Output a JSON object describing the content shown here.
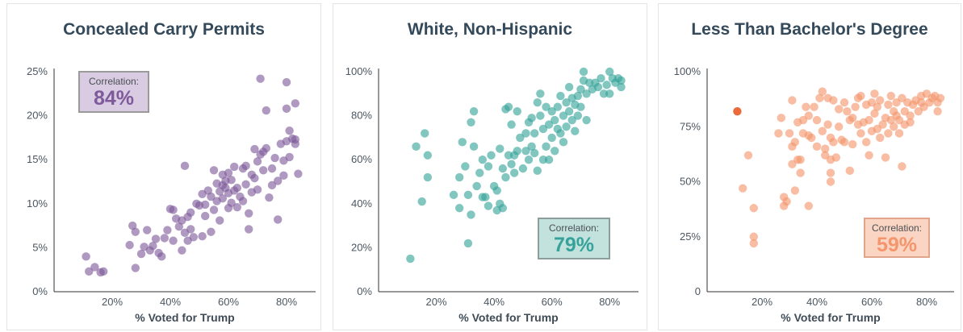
{
  "chart_data": [
    {
      "type": "scatter",
      "title": "Concealed Carry Permits",
      "xlabel": "% Voted for Trump",
      "ylabel": "",
      "xlim": [
        0,
        90
      ],
      "ylim": [
        0,
        25
      ],
      "x_ticks": [
        "20%",
        "40%",
        "60%",
        "80%"
      ],
      "x_tick_values": [
        20,
        40,
        60,
        80
      ],
      "y_ticks": [
        "0%",
        "5%",
        "10%",
        "15%",
        "20%",
        "25%"
      ],
      "y_tick_values": [
        0,
        5,
        10,
        15,
        20,
        25
      ],
      "color": "#7e5a9b",
      "correlation_label": "Correlation:",
      "correlation_value": "84%",
      "correlation_box_color": "#d9cbe2",
      "points": [
        [
          11,
          4
        ],
        [
          12,
          2.3
        ],
        [
          14,
          2.8
        ],
        [
          16,
          2.2
        ],
        [
          17,
          2.3
        ],
        [
          26,
          5.3
        ],
        [
          27,
          7.5
        ],
        [
          28,
          6.8
        ],
        [
          28,
          2.7
        ],
        [
          30,
          4.3
        ],
        [
          31,
          5.1
        ],
        [
          32,
          7
        ],
        [
          33,
          4.7
        ],
        [
          34,
          5.2
        ],
        [
          35,
          6
        ],
        [
          36,
          4.4
        ],
        [
          37,
          4
        ],
        [
          38,
          6.1
        ],
        [
          39,
          7
        ],
        [
          40,
          9.4
        ],
        [
          41,
          9.3
        ],
        [
          41,
          5.8
        ],
        [
          42,
          8.3
        ],
        [
          43,
          7.4
        ],
        [
          44,
          8.1
        ],
        [
          44,
          4.7
        ],
        [
          45,
          6.7
        ],
        [
          45,
          14.3
        ],
        [
          46,
          8.5
        ],
        [
          46,
          5.8
        ],
        [
          47,
          7.1
        ],
        [
          47,
          9
        ],
        [
          48,
          6.2
        ],
        [
          49,
          10
        ],
        [
          50,
          9.8
        ],
        [
          51,
          11.1
        ],
        [
          51,
          6.3
        ],
        [
          52,
          9.9
        ],
        [
          52,
          8.6
        ],
        [
          53,
          11.5
        ],
        [
          54,
          6.8
        ],
        [
          54,
          10.8
        ],
        [
          55,
          13.8
        ],
        [
          55,
          9.3
        ],
        [
          56,
          12.3
        ],
        [
          56,
          10.3
        ],
        [
          57,
          11.4
        ],
        [
          57,
          8.1
        ],
        [
          58,
          12.1
        ],
        [
          58,
          10.6
        ],
        [
          58,
          13.3
        ],
        [
          59,
          11.8
        ],
        [
          59,
          12.6
        ],
        [
          60,
          11.2
        ],
        [
          60,
          9.5
        ],
        [
          60,
          13.5
        ],
        [
          61,
          12.7
        ],
        [
          61,
          10.1
        ],
        [
          62,
          11.5
        ],
        [
          62,
          14.2
        ],
        [
          63,
          9.6
        ],
        [
          63,
          11.8
        ],
        [
          64,
          10.8
        ],
        [
          65,
          10.3
        ],
        [
          65,
          14
        ],
        [
          66,
          14.3
        ],
        [
          66,
          12.2
        ],
        [
          67,
          8.9
        ],
        [
          67,
          7.1
        ],
        [
          68,
          11.3
        ],
        [
          68,
          13.3
        ],
        [
          69,
          16.2
        ],
        [
          69,
          12.9
        ],
        [
          70,
          11.6
        ],
        [
          70,
          14.8
        ],
        [
          71,
          15.6
        ],
        [
          71,
          24.2
        ],
        [
          72,
          15.9
        ],
        [
          72,
          13.8
        ],
        [
          73,
          16.3
        ],
        [
          73,
          20.6
        ],
        [
          74,
          10.7
        ],
        [
          75,
          14
        ],
        [
          75,
          12.1
        ],
        [
          76,
          15.2
        ],
        [
          77,
          8.2
        ],
        [
          77,
          12.6
        ],
        [
          78,
          16.8
        ],
        [
          79,
          13.2
        ],
        [
          79,
          14.9
        ],
        [
          80,
          17.1
        ],
        [
          80,
          23.8
        ],
        [
          80,
          20.8
        ],
        [
          81,
          18.3
        ],
        [
          81,
          15.3
        ],
        [
          82,
          17.4
        ],
        [
          83,
          17.3
        ],
        [
          83,
          16.8
        ],
        [
          83,
          21.4
        ],
        [
          84,
          13.4
        ]
      ]
    },
    {
      "type": "scatter",
      "title": "White, Non-Hispanic",
      "xlabel": "% Voted for Trump",
      "ylabel": "",
      "xlim": [
        0,
        90
      ],
      "ylim": [
        0,
        100
      ],
      "x_ticks": [
        "20%",
        "40%",
        "60%",
        "80%"
      ],
      "x_tick_values": [
        20,
        40,
        60,
        80
      ],
      "y_ticks": [
        "0%",
        "20%",
        "40%",
        "60%",
        "80%",
        "100%"
      ],
      "y_tick_values": [
        0,
        20,
        40,
        60,
        80,
        100
      ],
      "color": "#36a39a",
      "correlation_label": "Correlation:",
      "correlation_value": "79%",
      "correlation_box_color": "#c3e2de",
      "points": [
        [
          11,
          15
        ],
        [
          13,
          66
        ],
        [
          15,
          41
        ],
        [
          16,
          72
        ],
        [
          17,
          52
        ],
        [
          17,
          62
        ],
        [
          26,
          44
        ],
        [
          28,
          38
        ],
        [
          28,
          52
        ],
        [
          29,
          68
        ],
        [
          30,
          57
        ],
        [
          31,
          22
        ],
        [
          31,
          44
        ],
        [
          32,
          77
        ],
        [
          32,
          35
        ],
        [
          33,
          82
        ],
        [
          33,
          66
        ],
        [
          34,
          48
        ],
        [
          35,
          54
        ],
        [
          36,
          43
        ],
        [
          36,
          60
        ],
        [
          37,
          43
        ],
        [
          38,
          39
        ],
        [
          38,
          57
        ],
        [
          39,
          62
        ],
        [
          40,
          48
        ],
        [
          41,
          46
        ],
        [
          41,
          37
        ],
        [
          42,
          40
        ],
        [
          42,
          65
        ],
        [
          43,
          38
        ],
        [
          43,
          56
        ],
        [
          44,
          83
        ],
        [
          44,
          52
        ],
        [
          45,
          84
        ],
        [
          45,
          62
        ],
        [
          46,
          58
        ],
        [
          46,
          76
        ],
        [
          47,
          54
        ],
        [
          47,
          62
        ],
        [
          48,
          64
        ],
        [
          48,
          82
        ],
        [
          49,
          70
        ],
        [
          50,
          56
        ],
        [
          51,
          72
        ],
        [
          51,
          64
        ],
        [
          52,
          77
        ],
        [
          52,
          60
        ],
        [
          53,
          66
        ],
        [
          53,
          79
        ],
        [
          54,
          72
        ],
        [
          54,
          63
        ],
        [
          55,
          86
        ],
        [
          55,
          55
        ],
        [
          56,
          80
        ],
        [
          56,
          90
        ],
        [
          57,
          74
        ],
        [
          57,
          60
        ],
        [
          58,
          84
        ],
        [
          58,
          66
        ],
        [
          59,
          76
        ],
        [
          59,
          60
        ],
        [
          60,
          82
        ],
        [
          60,
          70
        ],
        [
          61,
          78
        ],
        [
          61,
          64
        ],
        [
          62,
          84
        ],
        [
          62,
          74
        ],
        [
          63,
          89
        ],
        [
          63,
          72
        ],
        [
          64,
          80
        ],
        [
          64,
          68
        ],
        [
          65,
          86
        ],
        [
          65,
          75
        ],
        [
          66,
          93
        ],
        [
          66,
          82
        ],
        [
          67,
          88
        ],
        [
          67,
          78
        ],
        [
          68,
          85
        ],
        [
          68,
          73
        ],
        [
          69,
          89
        ],
        [
          69,
          80
        ],
        [
          70,
          92
        ],
        [
          70,
          84
        ],
        [
          71,
          100
        ],
        [
          71,
          96
        ],
        [
          72,
          90
        ],
        [
          72,
          78
        ],
        [
          73,
          95
        ],
        [
          74,
          92
        ],
        [
          75,
          95
        ],
        [
          76,
          93
        ],
        [
          77,
          97
        ],
        [
          78,
          90
        ],
        [
          79,
          94
        ],
        [
          80,
          100
        ],
        [
          80,
          90
        ],
        [
          81,
          97
        ],
        [
          82,
          95
        ],
        [
          83,
          97
        ],
        [
          84,
          96
        ],
        [
          84,
          93
        ]
      ]
    },
    {
      "type": "scatter",
      "title": "Less Than Bachelor's Degree",
      "xlabel": "% Voted for Trump",
      "ylabel": "",
      "xlim": [
        0,
        90
      ],
      "ylim": [
        0,
        100
      ],
      "x_ticks": [
        "20%",
        "40%",
        "60%",
        "80%"
      ],
      "x_tick_values": [
        20,
        40,
        60,
        80
      ],
      "y_ticks": [
        "0",
        "25%",
        "50%",
        "75%",
        "100%"
      ],
      "y_tick_values": [
        0,
        25,
        50,
        75,
        100
      ],
      "color": "#f4956b",
      "highlight_point": [
        11,
        82
      ],
      "highlight_color": "#ea6a3c",
      "correlation_label": "Correlation:",
      "correlation_value": "59%",
      "correlation_box_color": "#fbd5c3",
      "points": [
        [
          11,
          82
        ],
        [
          13,
          47
        ],
        [
          15,
          62
        ],
        [
          17,
          38
        ],
        [
          17,
          22
        ],
        [
          17,
          25
        ],
        [
          26,
          72
        ],
        [
          27,
          79
        ],
        [
          28,
          43
        ],
        [
          28,
          39
        ],
        [
          29,
          41
        ],
        [
          30,
          72
        ],
        [
          31,
          66
        ],
        [
          31,
          87
        ],
        [
          31,
          58
        ],
        [
          32,
          68
        ],
        [
          32,
          46
        ],
        [
          33,
          77
        ],
        [
          33,
          60
        ],
        [
          34,
          54
        ],
        [
          34,
          60
        ],
        [
          35,
          72
        ],
        [
          35,
          78
        ],
        [
          36,
          84
        ],
        [
          37,
          80
        ],
        [
          37,
          71
        ],
        [
          37,
          39
        ],
        [
          38,
          70
        ],
        [
          39,
          84
        ],
        [
          40,
          66
        ],
        [
          40,
          78
        ],
        [
          41,
          88
        ],
        [
          42,
          73
        ],
        [
          42,
          91
        ],
        [
          43,
          65
        ],
        [
          43,
          62
        ],
        [
          44,
          88
        ],
        [
          44,
          76
        ],
        [
          45,
          70
        ],
        [
          45,
          54
        ],
        [
          45,
          60
        ],
        [
          45,
          50
        ],
        [
          46,
          68
        ],
        [
          46,
          87
        ],
        [
          47,
          61
        ],
        [
          48,
          83
        ],
        [
          48,
          75
        ],
        [
          49,
          69
        ],
        [
          50,
          86
        ],
        [
          50,
          68
        ],
        [
          51,
          82
        ],
        [
          52,
          78
        ],
        [
          52,
          55
        ],
        [
          53,
          67
        ],
        [
          53,
          79
        ],
        [
          54,
          84
        ],
        [
          55,
          76
        ],
        [
          55,
          88
        ],
        [
          56,
          72
        ],
        [
          56,
          89
        ],
        [
          57,
          77
        ],
        [
          58,
          85
        ],
        [
          58,
          68
        ],
        [
          59,
          78
        ],
        [
          59,
          62
        ],
        [
          60,
          86
        ],
        [
          60,
          73
        ],
        [
          61,
          81
        ],
        [
          61,
          90
        ],
        [
          62,
          74
        ],
        [
          62,
          84
        ],
        [
          63,
          70
        ],
        [
          63,
          87
        ],
        [
          64,
          76
        ],
        [
          65,
          79
        ],
        [
          65,
          61
        ],
        [
          66,
          85
        ],
        [
          66,
          72
        ],
        [
          67,
          78
        ],
        [
          67,
          89
        ],
        [
          68,
          82
        ],
        [
          68,
          75
        ],
        [
          69,
          86
        ],
        [
          69,
          80
        ],
        [
          70,
          72
        ],
        [
          70,
          78
        ],
        [
          71,
          88
        ],
        [
          71,
          57
        ],
        [
          72,
          82
        ],
        [
          72,
          76
        ],
        [
          73,
          86
        ],
        [
          74,
          80
        ],
        [
          74,
          77
        ],
        [
          75,
          85
        ],
        [
          76,
          87
        ],
        [
          77,
          82
        ],
        [
          78,
          89
        ],
        [
          78,
          86
        ],
        [
          79,
          84
        ],
        [
          80,
          90
        ],
        [
          81,
          86
        ],
        [
          82,
          88
        ],
        [
          83,
          89
        ],
        [
          84,
          86
        ],
        [
          84,
          82
        ],
        [
          85,
          88
        ]
      ]
    }
  ]
}
